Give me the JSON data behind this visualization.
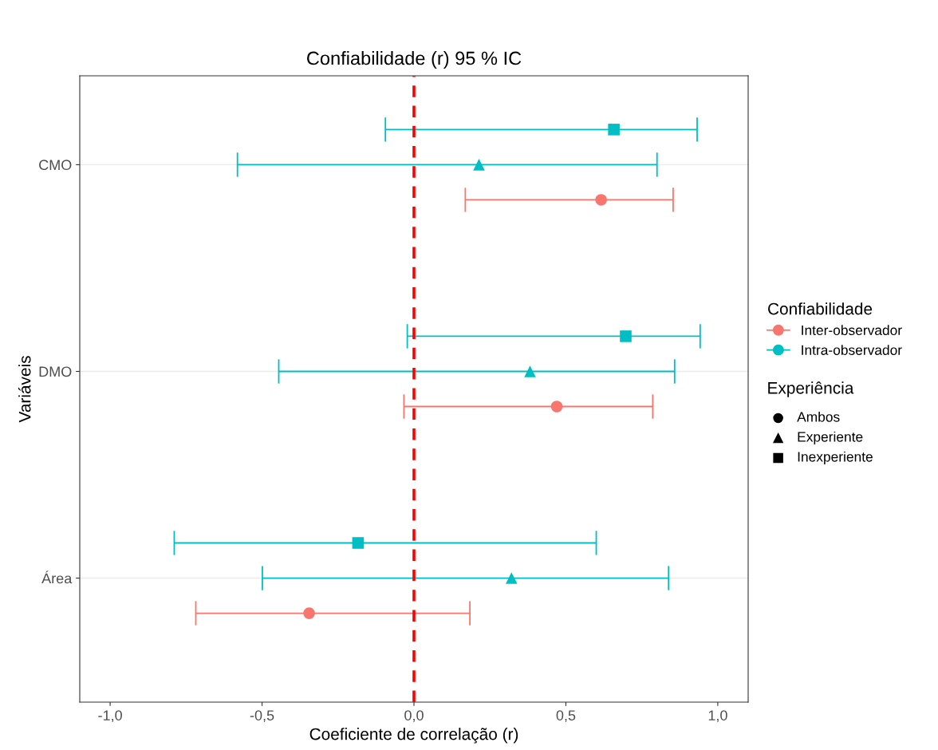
{
  "chart_data": {
    "type": "scatter",
    "orientation": "horizontal",
    "title": "Confiabilidade (r) 95 % IC",
    "xlabel": "Coeficiente de correlação (r)",
    "ylabel": "Variáveis",
    "categories": [
      "CMO",
      "DMO",
      "Área"
    ],
    "series": [
      {
        "name": "Inter-observador",
        "color": "#f8766d",
        "marker": "circle",
        "values": [
          0.616,
          0.47,
          -0.345
        ],
        "errors": [
          [
            0.169,
            0.853
          ],
          [
            -0.033,
            0.786
          ],
          [
            -0.718,
            0.184
          ]
        ]
      },
      {
        "name": "Intra-observador",
        "color": "#00bfc4",
        "marker": "triangle",
        "values": [
          0.214,
          0.382,
          0.321
        ],
        "errors": [
          [
            -0.581,
            0.8
          ],
          [
            -0.445,
            0.858
          ],
          [
            -0.499,
            0.838
          ]
        ]
      },
      {
        "color": "#00bfc4",
        "marker": "square",
        "values": [
          0.658,
          0.697,
          -0.184
        ],
        "errors": [
          [
            -0.094,
            0.932
          ],
          [
            -0.022,
            0.942
          ],
          [
            -0.789,
            0.6
          ]
        ]
      }
    ],
    "legend_title": "Confiabilidade",
    "annotations": [
      "Experiência",
      "Ambos",
      "Experiente",
      "Inexperiente"
    ],
    "xlim": [
      -1.1,
      1.1
    ],
    "xticks": [
      {
        "value": -1.0,
        "label": "-1,0"
      },
      {
        "value": -0.5,
        "label": "-0,5"
      },
      {
        "value": 0.0,
        "label": "0,0"
      },
      {
        "value": 0.5,
        "label": "0,5"
      },
      {
        "value": 1.0,
        "label": "1,0"
      }
    ],
    "ref_lines": [
      {
        "axis": "x",
        "value": 0,
        "color": "#ff0000",
        "line_style": "dashed"
      }
    ],
    "grid": "y",
    "legend": "right"
  }
}
